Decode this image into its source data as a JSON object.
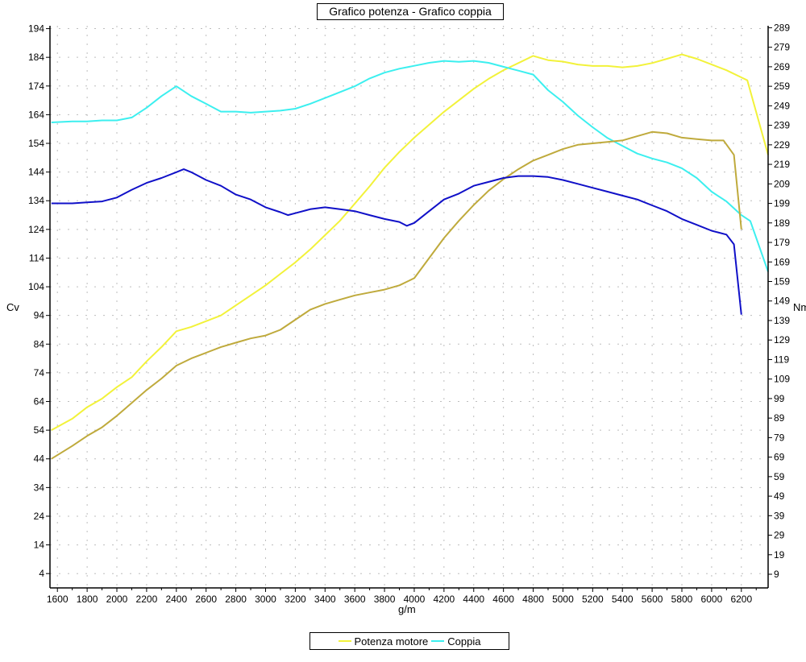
{
  "chart_data": {
    "type": "line",
    "title": "Grafico potenza - Grafico coppia",
    "xlabel": "g/m",
    "ylabel_left": "Cv",
    "ylabel_right": "Nm",
    "xlim": [
      1550,
      6380
    ],
    "ylim_left": [
      -1,
      195
    ],
    "ylim_right": [
      2,
      290
    ],
    "x_ticks": [
      1600,
      1800,
      2000,
      2200,
      2400,
      2600,
      2800,
      3000,
      3200,
      3400,
      3600,
      3800,
      4000,
      4200,
      4400,
      4600,
      4800,
      5000,
      5200,
      5400,
      5600,
      5800,
      6000,
      6200
    ],
    "y_ticks_left": [
      4,
      14,
      24,
      34,
      44,
      54,
      64,
      74,
      84,
      94,
      104,
      114,
      124,
      134,
      144,
      154,
      164,
      174,
      184,
      194
    ],
    "y_ticks_right": [
      9,
      19,
      29,
      39,
      49,
      59,
      69,
      79,
      89,
      99,
      109,
      119,
      129,
      139,
      149,
      159,
      169,
      179,
      189,
      199,
      209,
      219,
      229,
      239,
      249,
      259,
      269,
      279,
      289
    ],
    "grid": true,
    "legend_position": "bottom",
    "legend": [
      {
        "label": "Potenza motore",
        "color": "#f2f23a"
      },
      {
        "label": "Coppia",
        "color": "#3cefef"
      }
    ],
    "series": [
      {
        "name": "Potenza motore",
        "color": "#f2f23a",
        "axis": "left",
        "x": [
          1560,
          1700,
          1800,
          1900,
          2000,
          2100,
          2200,
          2300,
          2400,
          2500,
          2600,
          2700,
          2800,
          2900,
          3000,
          3100,
          3200,
          3300,
          3400,
          3500,
          3600,
          3700,
          3800,
          3900,
          4000,
          4100,
          4200,
          4300,
          4400,
          4500,
          4600,
          4700,
          4800,
          4900,
          5000,
          5100,
          5200,
          5300,
          5400,
          5500,
          5600,
          5700,
          5800,
          5900,
          6000,
          6100,
          6200,
          6240,
          6380
        ],
        "y": [
          54,
          58,
          62,
          65,
          69,
          72.5,
          78,
          83,
          88.5,
          90,
          92,
          94,
          97.5,
          101,
          104.5,
          108.5,
          112.5,
          117,
          122,
          127,
          133,
          139,
          145.5,
          151,
          156,
          160.5,
          165,
          169,
          173,
          176.5,
          179.5,
          182,
          184.5,
          183,
          182.5,
          181.5,
          181,
          181,
          180.5,
          181,
          182,
          183.5,
          185,
          183.5,
          181.5,
          179.5,
          177,
          176,
          150
        ]
      },
      {
        "name": "Coppia",
        "color": "#3cefef",
        "axis": "right",
        "x": [
          1560,
          1700,
          1800,
          1900,
          2000,
          2100,
          2200,
          2300,
          2400,
          2500,
          2600,
          2700,
          2800,
          2900,
          3000,
          3100,
          3200,
          3300,
          3400,
          3500,
          3600,
          3700,
          3800,
          3900,
          4000,
          4100,
          4200,
          4300,
          4400,
          4500,
          4600,
          4700,
          4800,
          4900,
          5000,
          5100,
          5200,
          5300,
          5400,
          5500,
          5600,
          5700,
          5800,
          5900,
          6000,
          6100,
          6200,
          6260,
          6380
        ],
        "y": [
          240.5,
          241,
          241,
          241.5,
          241.5,
          243,
          248,
          254,
          259,
          254,
          250,
          246,
          246,
          245.5,
          246,
          246.5,
          247.5,
          250,
          253,
          256,
          259,
          263,
          266,
          268,
          269.5,
          271,
          272,
          271.5,
          272,
          271,
          269,
          267,
          265,
          257,
          251,
          244,
          238,
          232.5,
          228.5,
          224.5,
          222,
          220,
          217,
          212,
          205,
          200,
          193,
          190,
          164
        ]
      },
      {
        "name": "",
        "color": "#bfaa3c",
        "axis": "left",
        "x": [
          1560,
          1700,
          1800,
          1900,
          2000,
          2100,
          2200,
          2300,
          2400,
          2500,
          2600,
          2700,
          2800,
          2900,
          3000,
          3100,
          3200,
          3300,
          3400,
          3500,
          3600,
          3700,
          3800,
          3900,
          4000,
          4100,
          4200,
          4300,
          4400,
          4500,
          4600,
          4700,
          4800,
          4900,
          5000,
          5100,
          5200,
          5300,
          5400,
          5500,
          5600,
          5700,
          5800,
          5900,
          6000,
          6080,
          6150,
          6200
        ],
        "y": [
          44,
          48.5,
          52,
          55,
          59,
          63.5,
          68,
          72,
          76.5,
          79,
          81,
          83,
          84.5,
          86,
          87,
          89,
          92.5,
          96,
          98,
          99.5,
          101,
          102,
          103,
          104.5,
          107,
          114,
          121,
          127,
          132.5,
          137.5,
          141.5,
          145,
          148,
          150,
          152,
          153.5,
          154,
          154.5,
          155,
          156.5,
          158,
          157.5,
          156,
          155.5,
          155,
          155,
          150,
          124
        ]
      },
      {
        "name": "",
        "color": "#1010c8",
        "axis": "right",
        "x": [
          1560,
          1700,
          1800,
          1900,
          2000,
          2100,
          2200,
          2300,
          2400,
          2450,
          2500,
          2600,
          2700,
          2800,
          2900,
          3000,
          3100,
          3150,
          3200,
          3300,
          3400,
          3500,
          3600,
          3700,
          3800,
          3900,
          3950,
          4000,
          4100,
          4200,
          4300,
          4400,
          4500,
          4600,
          4700,
          4800,
          4900,
          5000,
          5100,
          5200,
          5300,
          5400,
          5500,
          5600,
          5700,
          5800,
          5900,
          6000,
          6100,
          6150,
          6200
        ],
        "y": [
          199,
          199,
          199.5,
          200,
          202,
          206,
          209.5,
          212,
          215,
          216.5,
          215,
          211,
          208,
          203.5,
          201,
          197,
          194.5,
          193,
          194,
          196,
          197,
          196,
          195,
          193,
          191,
          189.5,
          187.5,
          189,
          195,
          201,
          204,
          208,
          210,
          212,
          213,
          213,
          212.5,
          211,
          209,
          207,
          205,
          203,
          201,
          198,
          195,
          191,
          188,
          185,
          183,
          178,
          142
        ]
      }
    ]
  }
}
